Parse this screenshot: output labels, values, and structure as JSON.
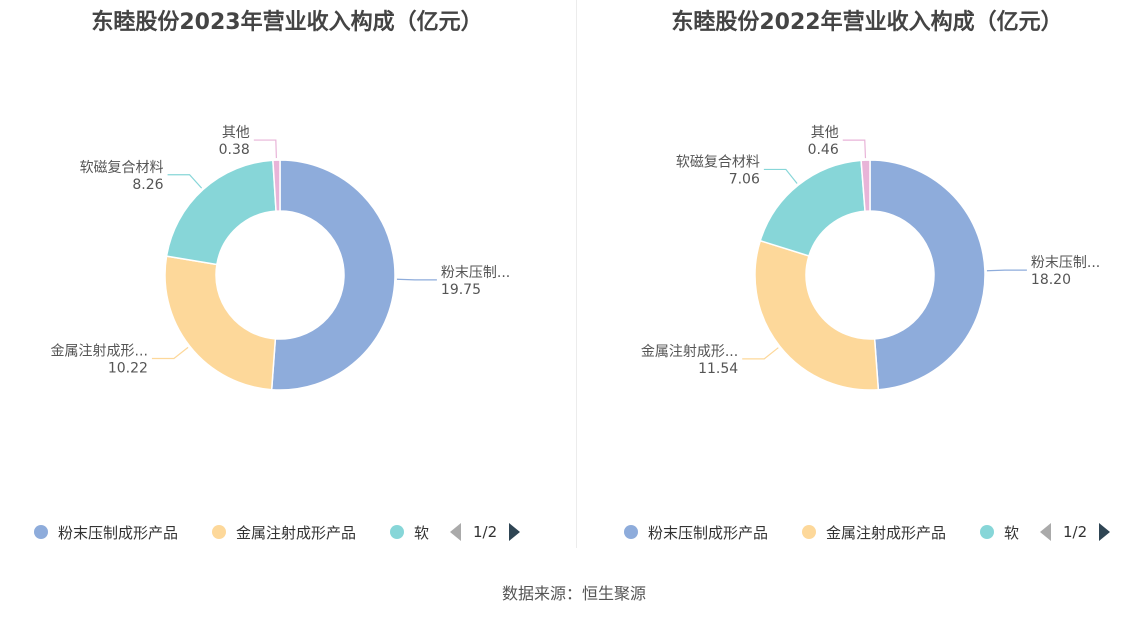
{
  "chart_data": [
    {
      "type": "pie",
      "title": "东睦股份2023年营业收入构成（亿元）",
      "categories": [
        "粉末压制成形产品",
        "金属注射成形产品",
        "软磁复合材料",
        "其他"
      ],
      "values": [
        19.75,
        10.22,
        8.26,
        0.38
      ],
      "slice_labels": [
        "粉末压制...",
        "金属注射成形...",
        "软磁复合材料",
        "其他"
      ],
      "value_labels": [
        "19.75",
        "10.22",
        "8.26",
        "0.38"
      ],
      "colors": [
        "#8eacdb",
        "#fdd89a",
        "#87d6d8",
        "#e8b4d8"
      ],
      "legend": {
        "items": [
          "粉末压制成形产品",
          "金属注射成形产品",
          "软"
        ],
        "page": "1/2",
        "placement": "bottom"
      }
    },
    {
      "type": "pie",
      "title": "东睦股份2022年营业收入构成（亿元）",
      "categories": [
        "粉末压制成形产品",
        "金属注射成形产品",
        "软磁复合材料",
        "其他"
      ],
      "values": [
        18.2,
        11.54,
        7.06,
        0.46
      ],
      "slice_labels": [
        "粉末压制...",
        "金属注射成形...",
        "软磁复合材料",
        "其他"
      ],
      "value_labels": [
        "18.20",
        "11.54",
        "7.06",
        "0.46"
      ],
      "colors": [
        "#8eacdb",
        "#fdd89a",
        "#87d6d8",
        "#e8b4d8"
      ],
      "legend": {
        "items": [
          "粉末压制成形产品",
          "金属注射成形产品",
          "软"
        ],
        "page": "1/2",
        "placement": "bottom"
      }
    }
  ],
  "source_text": "数据来源：恒生聚源"
}
